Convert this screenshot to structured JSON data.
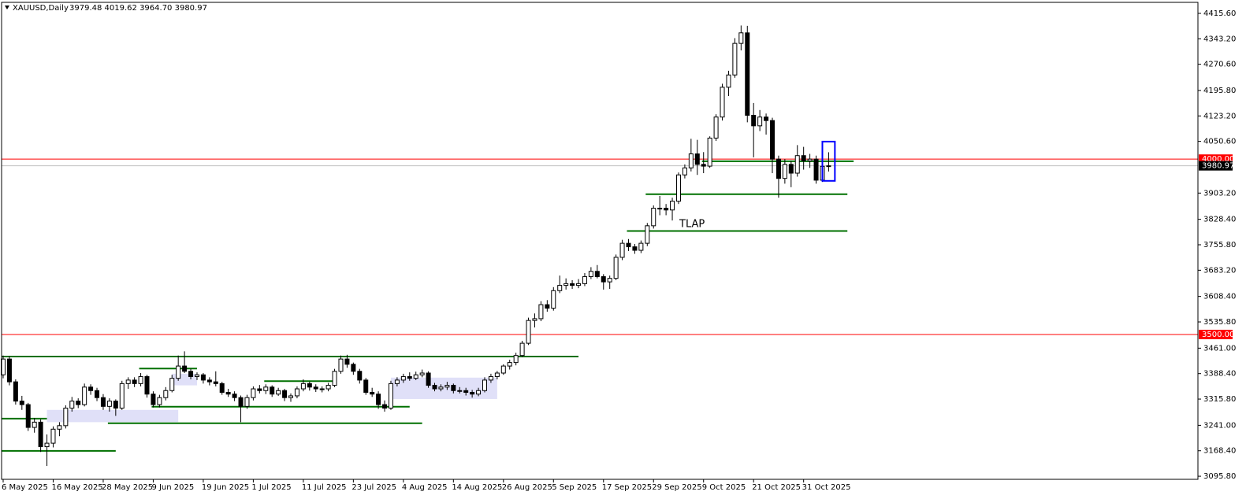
{
  "chart_data": {
    "type": "candlestick",
    "title": "XAUUSD,Daily",
    "subtitle": "3979.48 4019.62 3964.70 3980.97",
    "up_color": "#ffffff",
    "down_color": "#000000",
    "categories": [
      "6 May 2025",
      null,
      null,
      null,
      null,
      null,
      null,
      null,
      "16 May 2025",
      null,
      null,
      null,
      null,
      null,
      null,
      null,
      "28 May 2025",
      null,
      null,
      null,
      null,
      null,
      null,
      null,
      "9 Jun 2025",
      null,
      null,
      null,
      null,
      null,
      null,
      null,
      "19 Jun 2025",
      null,
      null,
      null,
      null,
      null,
      null,
      null,
      "1 Jul 2025",
      null,
      null,
      null,
      null,
      null,
      null,
      null,
      "11 Jul 2025",
      null,
      null,
      null,
      null,
      null,
      null,
      null,
      "23 Jul 2025",
      null,
      null,
      null,
      null,
      null,
      null,
      null,
      "4 Aug 2025",
      null,
      null,
      null,
      null,
      null,
      null,
      null,
      "14 Aug 2025",
      null,
      null,
      null,
      null,
      null,
      null,
      null,
      "26 Aug 2025",
      null,
      null,
      null,
      null,
      null,
      null,
      null,
      "5 Sep 2025",
      null,
      null,
      null,
      null,
      null,
      null,
      null,
      "17 Sep 2025",
      null,
      null,
      null,
      null,
      null,
      null,
      null,
      "29 Sep 2025",
      null,
      null,
      null,
      null,
      null,
      null,
      null,
      "9 Oct 2025",
      null,
      null,
      null,
      null,
      null,
      null,
      null,
      "21 Oct 2025",
      null,
      null,
      null,
      null,
      null,
      null,
      null,
      "31 Oct 2025",
      null,
      null,
      null,
      null
    ],
    "values": [
      [
        3385,
        3440,
        3375,
        3430
      ],
      [
        3430,
        3438,
        3355,
        3365
      ],
      [
        3365,
        3372,
        3300,
        3310
      ],
      [
        3310,
        3325,
        3285,
        3300
      ],
      [
        3300,
        3305,
        3225,
        3235
      ],
      [
        3235,
        3262,
        3220,
        3250
      ],
      [
        3250,
        3258,
        3165,
        3180
      ],
      [
        3180,
        3215,
        3125,
        3190
      ],
      [
        3190,
        3238,
        3178,
        3230
      ],
      [
        3230,
        3250,
        3210,
        3240
      ],
      [
        3240,
        3298,
        3232,
        3290
      ],
      [
        3290,
        3322,
        3280,
        3310
      ],
      [
        3310,
        3318,
        3290,
        3300
      ],
      [
        3300,
        3360,
        3295,
        3350
      ],
      [
        3350,
        3358,
        3328,
        3340
      ],
      [
        3340,
        3348,
        3310,
        3320
      ],
      [
        3320,
        3330,
        3285,
        3295
      ],
      [
        3295,
        3318,
        3280,
        3310
      ],
      [
        3310,
        3315,
        3268,
        3290
      ],
      [
        3290,
        3368,
        3285,
        3360
      ],
      [
        3360,
        3378,
        3345,
        3370
      ],
      [
        3370,
        3378,
        3350,
        3360
      ],
      [
        3360,
        3390,
        3352,
        3380
      ],
      [
        3380,
        3385,
        3320,
        3330
      ],
      [
        3330,
        3338,
        3292,
        3300
      ],
      [
        3300,
        3328,
        3292,
        3320
      ],
      [
        3320,
        3350,
        3312,
        3340
      ],
      [
        3340,
        3385,
        3335,
        3375
      ],
      [
        3375,
        3440,
        3368,
        3410
      ],
      [
        3410,
        3452,
        3390,
        3395
      ],
      [
        3395,
        3402,
        3372,
        3380
      ],
      [
        3380,
        3392,
        3370,
        3385
      ],
      [
        3385,
        3390,
        3360,
        3370
      ],
      [
        3370,
        3378,
        3355,
        3365
      ],
      [
        3365,
        3395,
        3352,
        3360
      ],
      [
        3360,
        3365,
        3328,
        3335
      ],
      [
        3335,
        3345,
        3322,
        3330
      ],
      [
        3330,
        3338,
        3310,
        3320
      ],
      [
        3320,
        3326,
        3250,
        3295
      ],
      [
        3295,
        3328,
        3288,
        3320
      ],
      [
        3320,
        3352,
        3312,
        3345
      ],
      [
        3345,
        3356,
        3332,
        3340
      ],
      [
        3340,
        3358,
        3330,
        3350
      ],
      [
        3350,
        3355,
        3322,
        3330
      ],
      [
        3330,
        3348,
        3325,
        3340
      ],
      [
        3340,
        3345,
        3310,
        3320
      ],
      [
        3320,
        3332,
        3308,
        3325
      ],
      [
        3325,
        3352,
        3318,
        3345
      ],
      [
        3345,
        3372,
        3338,
        3360
      ],
      [
        3360,
        3365,
        3340,
        3350
      ],
      [
        3350,
        3358,
        3336,
        3345
      ],
      [
        3345,
        3352,
        3335,
        3345
      ],
      [
        3345,
        3362,
        3338,
        3355
      ],
      [
        3355,
        3402,
        3350,
        3395
      ],
      [
        3395,
        3440,
        3388,
        3430
      ],
      [
        3430,
        3442,
        3405,
        3415
      ],
      [
        3415,
        3420,
        3385,
        3395
      ],
      [
        3395,
        3402,
        3360,
        3370
      ],
      [
        3370,
        3376,
        3328,
        3335
      ],
      [
        3335,
        3348,
        3322,
        3330
      ],
      [
        3330,
        3338,
        3288,
        3300
      ],
      [
        3300,
        3312,
        3280,
        3290
      ],
      [
        3290,
        3368,
        3285,
        3360
      ],
      [
        3360,
        3378,
        3352,
        3370
      ],
      [
        3370,
        3388,
        3362,
        3380
      ],
      [
        3380,
        3392,
        3368,
        3375
      ],
      [
        3375,
        3394,
        3370,
        3385
      ],
      [
        3385,
        3400,
        3378,
        3390
      ],
      [
        3390,
        3395,
        3348,
        3355
      ],
      [
        3355,
        3362,
        3338,
        3345
      ],
      [
        3345,
        3358,
        3338,
        3350
      ],
      [
        3350,
        3365,
        3342,
        3355
      ],
      [
        3355,
        3360,
        3332,
        3340
      ],
      [
        3340,
        3350,
        3332,
        3340
      ],
      [
        3340,
        3348,
        3326,
        3335
      ],
      [
        3335,
        3342,
        3320,
        3330
      ],
      [
        3330,
        3348,
        3324,
        3340
      ],
      [
        3340,
        3378,
        3335,
        3370
      ],
      [
        3370,
        3388,
        3362,
        3380
      ],
      [
        3380,
        3396,
        3372,
        3390
      ],
      [
        3390,
        3415,
        3385,
        3410
      ],
      [
        3410,
        3428,
        3400,
        3420
      ],
      [
        3420,
        3448,
        3412,
        3440
      ],
      [
        3440,
        3482,
        3435,
        3475
      ],
      [
        3475,
        3548,
        3470,
        3540
      ],
      [
        3540,
        3560,
        3520,
        3545
      ],
      [
        3545,
        3595,
        3538,
        3585
      ],
      [
        3585,
        3598,
        3565,
        3575
      ],
      [
        3575,
        3635,
        3568,
        3625
      ],
      [
        3625,
        3668,
        3618,
        3640
      ],
      [
        3640,
        3660,
        3628,
        3645
      ],
      [
        3645,
        3655,
        3630,
        3640
      ],
      [
        3640,
        3658,
        3632,
        3645
      ],
      [
        3645,
        3675,
        3638,
        3665
      ],
      [
        3665,
        3692,
        3658,
        3680
      ],
      [
        3680,
        3698,
        3660,
        3665
      ],
      [
        3665,
        3672,
        3628,
        3650
      ],
      [
        3650,
        3668,
        3630,
        3660
      ],
      [
        3660,
        3728,
        3655,
        3720
      ],
      [
        3720,
        3770,
        3712,
        3760
      ],
      [
        3760,
        3772,
        3738,
        3750
      ],
      [
        3750,
        3758,
        3730,
        3740
      ],
      [
        3740,
        3768,
        3732,
        3760
      ],
      [
        3760,
        3818,
        3752,
        3810
      ],
      [
        3810,
        3868,
        3802,
        3860
      ],
      [
        3860,
        3895,
        3840,
        3860
      ],
      [
        3860,
        3872,
        3840,
        3855
      ],
      [
        3855,
        3890,
        3825,
        3880
      ],
      [
        3880,
        3962,
        3872,
        3955
      ],
      [
        3955,
        3985,
        3945,
        3975
      ],
      [
        3975,
        4058,
        3965,
        4015
      ],
      [
        4015,
        4055,
        3955,
        3985
      ],
      [
        3985,
        4020,
        3960,
        3980
      ],
      [
        3980,
        4065,
        3975,
        4060
      ],
      [
        4060,
        4128,
        4052,
        4120
      ],
      [
        4120,
        4215,
        4110,
        4205
      ],
      [
        4205,
        4252,
        4180,
        4240
      ],
      [
        4240,
        4345,
        4232,
        4330
      ],
      [
        4330,
        4381,
        4310,
        4360
      ],
      [
        4360,
        4380,
        4105,
        4125
      ],
      [
        4125,
        4160,
        4005,
        4095
      ],
      [
        4095,
        4140,
        4080,
        4120
      ],
      [
        4120,
        4130,
        4070,
        4110
      ],
      [
        4110,
        4118,
        3960,
        4000
      ],
      [
        4000,
        4010,
        3890,
        3945
      ],
      [
        3945,
        4000,
        3930,
        3985
      ],
      [
        3985,
        3995,
        3920,
        3960
      ],
      [
        3960,
        4040,
        3950,
        4010
      ],
      [
        4010,
        4035,
        3970,
        3995
      ],
      [
        3995,
        4015,
        3975,
        4000
      ],
      [
        4000,
        4010,
        3930,
        3940
      ],
      [
        3940,
        3990,
        3935,
        3979.48
      ],
      [
        3979.48,
        4019.62,
        3964.7,
        3980.97
      ]
    ],
    "ylim": [
      3087,
      4447
    ],
    "yticks": [
      {
        "value": 4415.6,
        "label": "4415.60"
      },
      {
        "value": 4343.2,
        "label": "4343.20"
      },
      {
        "value": 4270.6,
        "label": "4270.60"
      },
      {
        "value": 4195.8,
        "label": "4195.80"
      },
      {
        "value": 4123.2,
        "label": "4123.20"
      },
      {
        "value": 4050.6,
        "label": "4050.60"
      },
      {
        "value": 3903.2,
        "label": "3903.20"
      },
      {
        "value": 3828.4,
        "label": "3828.40"
      },
      {
        "value": 3755.8,
        "label": "3755.80"
      },
      {
        "value": 3683.2,
        "label": "3683.20"
      },
      {
        "value": 3608.4,
        "label": "3608.40"
      },
      {
        "value": 3535.8,
        "label": "3535.80"
      },
      {
        "value": 3461,
        "label": "3461.00"
      },
      {
        "value": 3388.4,
        "label": "3388.40"
      },
      {
        "value": 3315.8,
        "label": "3315.80"
      },
      {
        "value": 3241,
        "label": "3241.00"
      },
      {
        "value": 3168.4,
        "label": "3168.40"
      },
      {
        "value": 3095.8,
        "label": "3095.80"
      }
    ],
    "hlines": [
      {
        "value": 4000,
        "label": "4000.00",
        "color": "#ff0000",
        "label_fill": "#ff0000",
        "label_color": "#ffffff"
      },
      {
        "value": 3500,
        "label": "3500.00",
        "color": "#ff0000",
        "label_fill": "#ff0000",
        "label_color": "#ffffff"
      },
      {
        "value": 3980.97,
        "label": "3980.97",
        "color": "#c0c0c0",
        "label_fill": "#000000",
        "label_color": "#ffffff"
      }
    ],
    "level_color": "#007000",
    "levels": [
      {
        "value": 3437,
        "x": [
          0,
          92
        ]
      },
      {
        "value": 3994,
        "x": [
          112,
          136
        ]
      },
      {
        "value": 3900,
        "x": [
          103,
          135
        ]
      },
      {
        "value": 3795,
        "x": [
          100,
          135
        ]
      },
      {
        "value": 3260,
        "x": [
          0,
          7
        ]
      },
      {
        "value": 3168,
        "x": [
          0,
          18
        ]
      },
      {
        "value": 3247,
        "x": [
          17,
          67
        ]
      },
      {
        "value": 3294,
        "x": [
          24,
          65
        ]
      },
      {
        "value": 3403,
        "x": [
          22,
          31
        ]
      },
      {
        "value": 3367,
        "x": [
          42,
          53
        ]
      }
    ],
    "zone_color": "#e0e0f8",
    "zones": [
      {
        "x": [
          7,
          28
        ],
        "y": [
          3250,
          3285
        ]
      },
      {
        "x": [
          27,
          31
        ],
        "y": [
          3355,
          3388
        ]
      },
      {
        "x": [
          62,
          79
        ],
        "y": [
          3316,
          3377
        ]
      }
    ],
    "box": {
      "x": [
        131,
        133
      ],
      "y": [
        3938,
        4050
      ],
      "color": "#0000ff"
    },
    "annotation": "TLAP"
  }
}
